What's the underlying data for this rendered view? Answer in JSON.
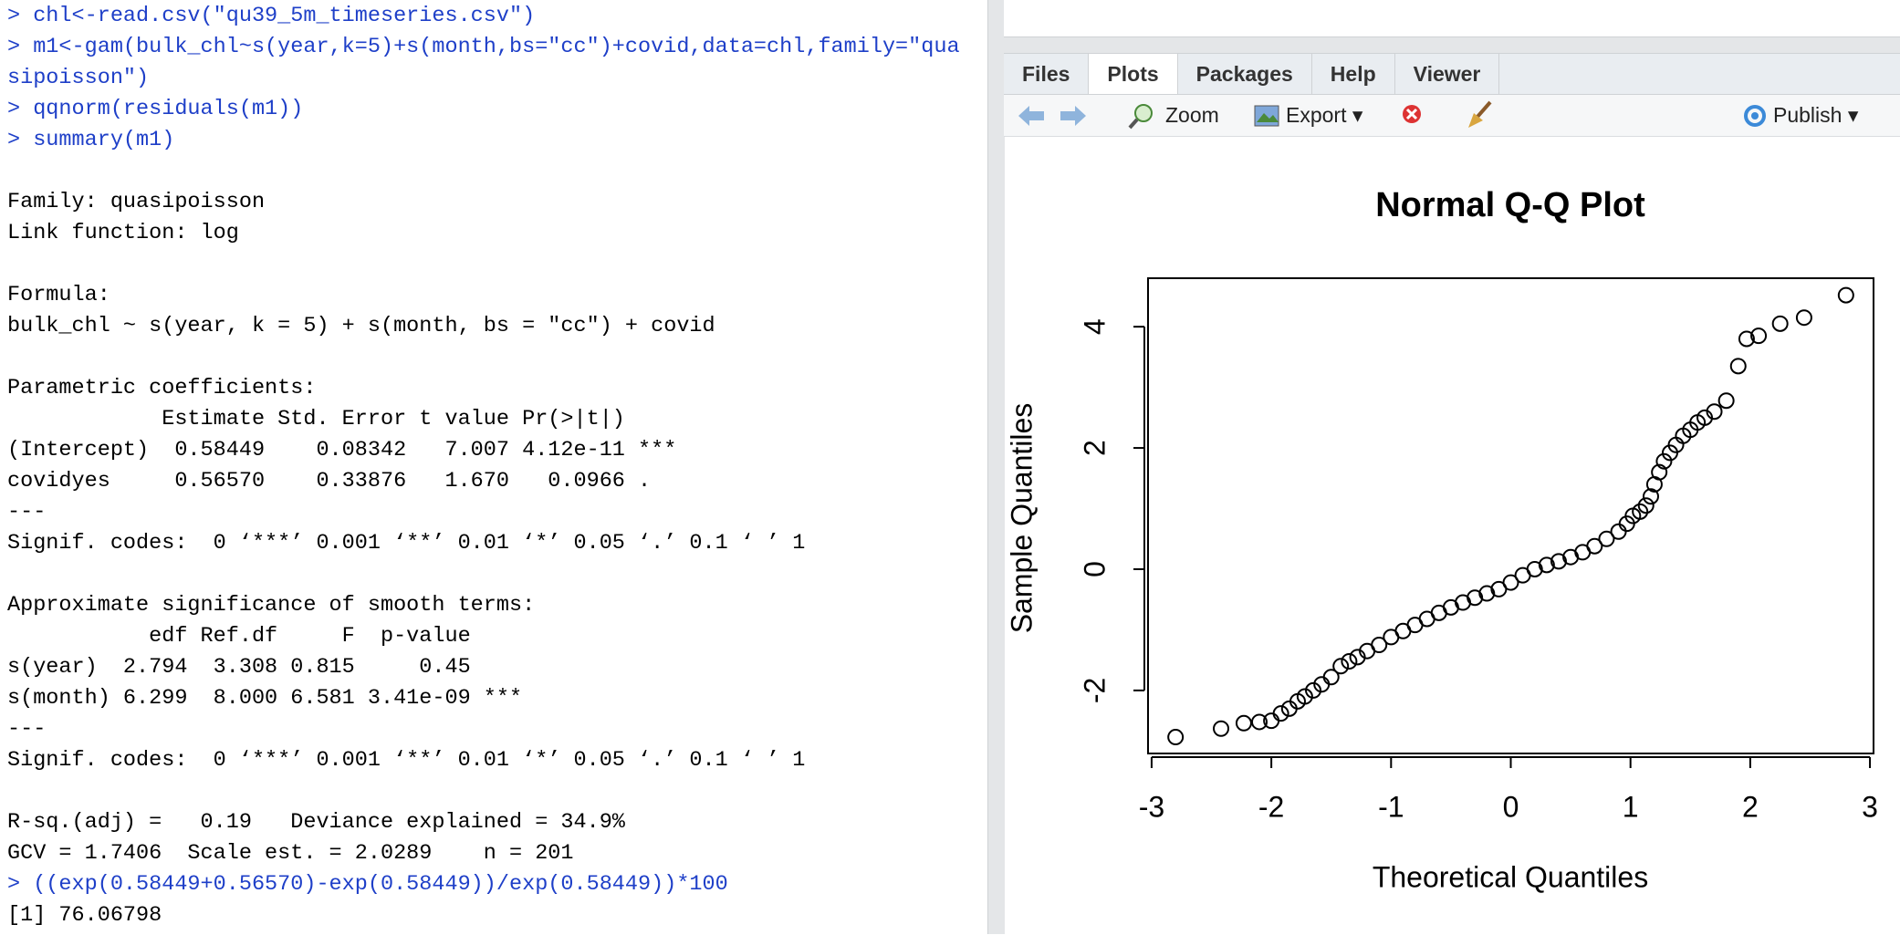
{
  "console": {
    "blocks": [
      [
        {
          "text": "> chl<-read.csv(\"qu39_5m_timeseries.csv\")",
          "kind": "input"
        },
        {
          "text": "> m1<-gam(bulk_chl~s(year,k=5)+s(month,bs=\"cc\")+covid,data=chl,family=\"qua",
          "kind": "input"
        },
        {
          "text": "sipoisson\")",
          "kind": "input"
        },
        {
          "text": "> qqnorm(residuals(m1))",
          "kind": "input"
        },
        {
          "text": "> summary(m1)",
          "kind": "input"
        }
      ],
      [
        {
          "text": "Family: quasipoisson",
          "kind": "output"
        },
        {
          "text": "Link function: log",
          "kind": "output"
        }
      ],
      [
        {
          "text": "Formula:",
          "kind": "output"
        },
        {
          "text": "bulk_chl ~ s(year, k = 5) + s(month, bs = \"cc\") + covid",
          "kind": "output"
        }
      ],
      [
        {
          "text": "Parametric coefficients:",
          "kind": "output"
        },
        {
          "text": "            Estimate Std. Error t value Pr(>|t|)",
          "kind": "output"
        },
        {
          "text": "(Intercept)  0.58449    0.08342   7.007 4.12e-11 ***",
          "kind": "output"
        },
        {
          "text": "covidyes     0.56570    0.33876   1.670   0.0966 .",
          "kind": "output"
        },
        {
          "text": "---",
          "kind": "output"
        },
        {
          "text": "Signif. codes:  0 ‘***’ 0.001 ‘**’ 0.01 ‘*’ 0.05 ‘.’ 0.1 ‘ ’ 1",
          "kind": "output"
        }
      ],
      [
        {
          "text": "Approximate significance of smooth terms:",
          "kind": "output"
        },
        {
          "text": "           edf Ref.df     F  p-value",
          "kind": "output"
        },
        {
          "text": "s(year)  2.794  3.308 0.815     0.45",
          "kind": "output"
        },
        {
          "text": "s(month) 6.299  8.000 6.581 3.41e-09 ***",
          "kind": "output"
        },
        {
          "text": "---",
          "kind": "output"
        },
        {
          "text": "Signif. codes:  0 ‘***’ 0.001 ‘**’ 0.01 ‘*’ 0.05 ‘.’ 0.1 ‘ ’ 1",
          "kind": "output"
        }
      ],
      [
        {
          "text": "R-sq.(adj) =   0.19   Deviance explained = 34.9%",
          "kind": "output"
        },
        {
          "text": "GCV = 1.7406  Scale est. = 2.0289    n = 201",
          "kind": "output"
        },
        {
          "text": "> ((exp(0.58449+0.56570)-exp(0.58449))/exp(0.58449))*100",
          "kind": "input"
        },
        {
          "text": "[1] 76.06798",
          "kind": "output"
        }
      ]
    ]
  },
  "pane": {
    "tabs": [
      "Files",
      "Plots",
      "Packages",
      "Help",
      "Viewer"
    ],
    "active_tab": 1,
    "toolbar": {
      "zoom": "Zoom",
      "export": "Export",
      "publish": "Publish"
    }
  },
  "chart_data": {
    "type": "scatter",
    "title": "Normal Q-Q Plot",
    "x_label": "Theoretical Quantiles",
    "y_label": "Sample Quantiles",
    "xlim": [
      -3.03,
      3.03
    ],
    "ylim": [
      -3.04,
      4.8
    ],
    "xticks": [
      -3,
      -2,
      -1,
      0,
      1,
      2,
      3
    ],
    "yticks": [
      -2,
      0,
      2,
      4
    ],
    "color": "#000000",
    "x": [
      -2.8,
      -2.42,
      -2.23,
      -2.1,
      -2.0,
      -1.92,
      -1.85,
      -1.78,
      -1.72,
      -1.65,
      -1.58,
      -1.5,
      -1.42,
      -1.35,
      -1.28,
      -1.2,
      -1.1,
      -1.0,
      -0.9,
      -0.8,
      -0.7,
      -0.6,
      -0.5,
      -0.4,
      -0.3,
      -0.2,
      -0.1,
      0,
      0.1,
      0.2,
      0.3,
      0.4,
      0.5,
      0.6,
      0.7,
      0.8,
      0.9,
      0.97,
      1.02,
      1.08,
      1.13,
      1.17,
      1.2,
      1.24,
      1.28,
      1.33,
      1.38,
      1.44,
      1.5,
      1.56,
      1.62,
      1.7,
      1.8,
      1.9,
      1.97,
      2.07,
      2.25,
      2.45,
      2.8
    ],
    "values": [
      -2.77,
      -2.63,
      -2.54,
      -2.52,
      -2.5,
      -2.38,
      -2.3,
      -2.18,
      -2.1,
      -2.0,
      -1.9,
      -1.78,
      -1.6,
      -1.52,
      -1.45,
      -1.35,
      -1.25,
      -1.12,
      -1.02,
      -0.92,
      -0.82,
      -0.72,
      -0.63,
      -0.55,
      -0.47,
      -0.4,
      -0.33,
      -0.22,
      -0.1,
      0.0,
      0.07,
      0.13,
      0.2,
      0.28,
      0.38,
      0.5,
      0.62,
      0.75,
      0.88,
      0.95,
      1.05,
      1.2,
      1.4,
      1.6,
      1.78,
      1.92,
      2.05,
      2.2,
      2.3,
      2.42,
      2.5,
      2.6,
      2.78,
      3.35,
      3.8,
      3.85,
      4.05,
      4.15,
      4.52
    ]
  }
}
